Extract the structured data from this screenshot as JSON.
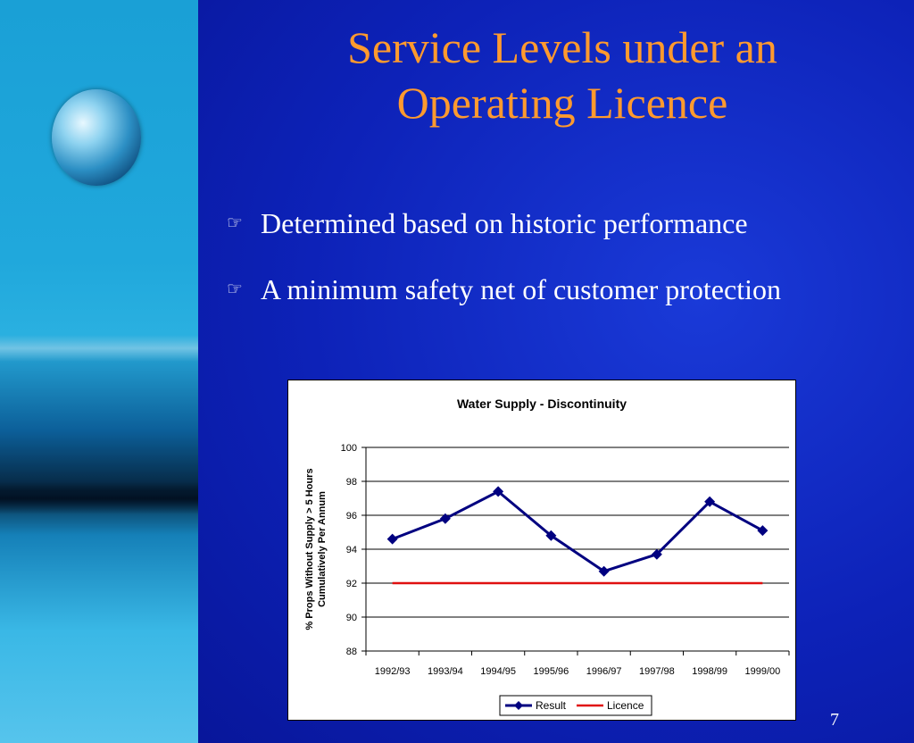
{
  "slide": {
    "title_line1": "Service Levels under an",
    "title_line2": "Operating Licence",
    "bullets": [
      "Determined based on historic performance",
      "A minimum safety net of customer protection"
    ],
    "bullet_symbol": "☞",
    "page_number": "7"
  },
  "colors": {
    "background": "#0d22b8",
    "title": "#ff9a2e",
    "result_series": "#000080",
    "licence_series": "#e01010"
  },
  "chart_data": {
    "type": "line",
    "title": "Water Supply - Discontinuity",
    "ylabel_line1": "% Props Without Supply > 5 Hours",
    "ylabel_line2": "Cumulatively Per Annum",
    "categories": [
      "1992/93",
      "1993/94",
      "1994/95",
      "1995/96",
      "1996/97",
      "1997/98",
      "1998/99",
      "1999/00"
    ],
    "ylim": [
      88,
      100
    ],
    "yticks": [
      88,
      90,
      92,
      94,
      96,
      98,
      100
    ],
    "grid": true,
    "legend_position": "bottom",
    "series": [
      {
        "name": "Result",
        "values": [
          94.6,
          95.8,
          97.4,
          94.8,
          92.7,
          93.7,
          96.8,
          95.1
        ],
        "marker": "diamond"
      },
      {
        "name": "Licence",
        "values": [
          92.0,
          92.0,
          92.0,
          92.0,
          92.0,
          92.0,
          92.0,
          92.0
        ],
        "marker": "none"
      }
    ]
  }
}
